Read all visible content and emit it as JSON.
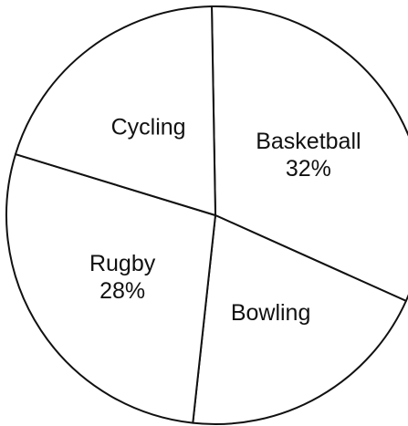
{
  "chart_data": {
    "type": "pie",
    "slices": [
      {
        "label": "Basketball",
        "value": 32,
        "value_label": "32%"
      },
      {
        "label": "Bowling",
        "value": 20,
        "value_label": ""
      },
      {
        "label": "Rugby",
        "value": 28,
        "value_label": "28%"
      },
      {
        "label": "Cycling",
        "value": 20,
        "value_label": ""
      }
    ],
    "colors": {
      "fill": "#ffffff",
      "stroke": "#111111",
      "text": "#111111"
    }
  }
}
